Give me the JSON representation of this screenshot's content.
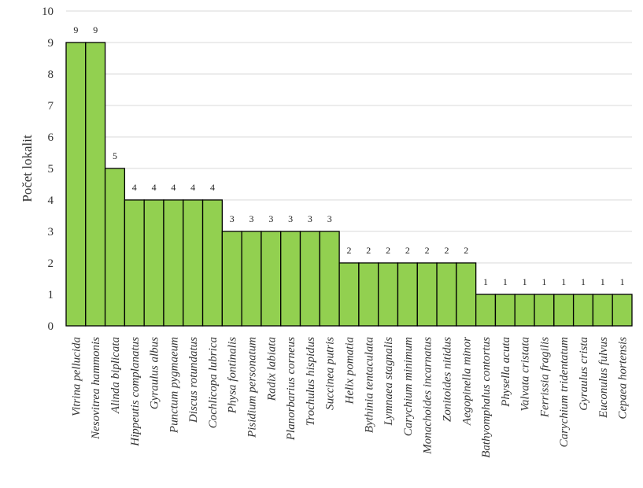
{
  "chart_data": {
    "type": "bar",
    "title": "",
    "xlabel": "",
    "ylabel": "Počet lokalit",
    "ylim": [
      0,
      10
    ],
    "ytick_step": 1,
    "grid": true,
    "bar_color": "#92d050",
    "bar_edge_color": "#000000",
    "categories": [
      "Vitrina pellucida",
      "Nesovitrea hammonis",
      "Alinda biplicata",
      "Hippeutis complanatus",
      "Gyraulus albus",
      "Punctum pygmaeum",
      "Discus rotundatus",
      "Cochlicopa lubrica",
      "Physa fontinalis",
      "Pisidium personatum",
      "Radix labiata",
      "Planorbarius corneus",
      "Trochulus hispidus",
      "Succinea putris",
      "Helix pomatia",
      "Bythinia tentaculata",
      "Lymnaea stagnalis",
      "Carychium minimum",
      "Monachoides incarnatus",
      "Zonitoides nitidus",
      "Aegopinella minor",
      "Bathyomphalus contortus",
      "Physella acuta",
      "Valvata cristata",
      "Ferrissia fragilis",
      "Carychium tridentatum",
      "Gyraulus crista",
      "Euconulus fulvus",
      "Cepaea hortensis"
    ],
    "values": [
      9,
      9,
      5,
      4,
      4,
      4,
      4,
      4,
      3,
      3,
      3,
      3,
      3,
      3,
      2,
      2,
      2,
      2,
      2,
      2,
      2,
      1,
      1,
      1,
      1,
      1,
      1,
      1,
      1
    ]
  }
}
